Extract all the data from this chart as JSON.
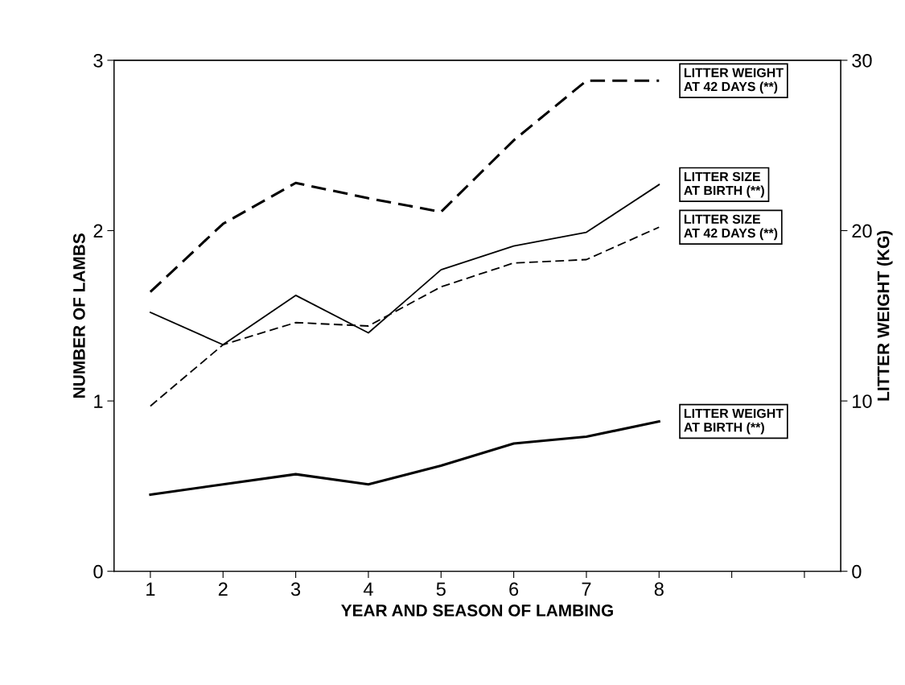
{
  "chart_data": {
    "type": "line",
    "xlabel": "YEAR AND SEASON OF LAMBING",
    "ylabel": "NUMBER OF LAMBS",
    "y2label": "LITTER WEIGHT (KG)",
    "x": [
      1,
      2,
      3,
      4,
      5,
      6,
      7,
      8
    ],
    "xlim": [
      0.5,
      10.5
    ],
    "xticks": [
      1,
      2,
      3,
      4,
      5,
      6,
      7,
      8,
      {
        "value": 9,
        "label": null
      },
      {
        "value": 10,
        "label": null
      }
    ],
    "ylim": [
      0,
      3
    ],
    "yticks": [
      0,
      1,
      2,
      3
    ],
    "y2lim": [
      0,
      30
    ],
    "y2ticks": [
      0,
      10,
      20,
      30
    ],
    "grid": false,
    "legend": false,
    "marker": "none",
    "series": [
      {
        "name": "LITTER WEIGHT\nAT 42 DAYS (**)",
        "color": "#000000",
        "axis": "y2",
        "line_style": "dashed",
        "values": [
          16.4,
          20.4,
          22.8,
          21.9,
          21.1,
          25.3,
          28.8,
          28.8
        ]
      },
      {
        "name": "LITTER SIZE\nAT BIRTH (**)",
        "color": "#000000",
        "line_style": "solid",
        "values": [
          1.52,
          1.33,
          1.62,
          1.4,
          1.77,
          1.91,
          1.99,
          2.27
        ]
      },
      {
        "name": "LITTER SIZE\nAT 42 DAYS (**)",
        "color": "#000000",
        "line_style": "dashed",
        "values": [
          0.97,
          1.33,
          1.46,
          1.44,
          1.67,
          1.81,
          1.83,
          2.02
        ]
      },
      {
        "name": "LITTER WEIGHT\nAT BIRTH (**)",
        "color": "#000000",
        "axis": "y2",
        "line_style": "solid",
        "values": [
          4.5,
          5.1,
          5.7,
          5.1,
          6.2,
          7.5,
          7.9,
          8.8
        ]
      }
    ]
  }
}
